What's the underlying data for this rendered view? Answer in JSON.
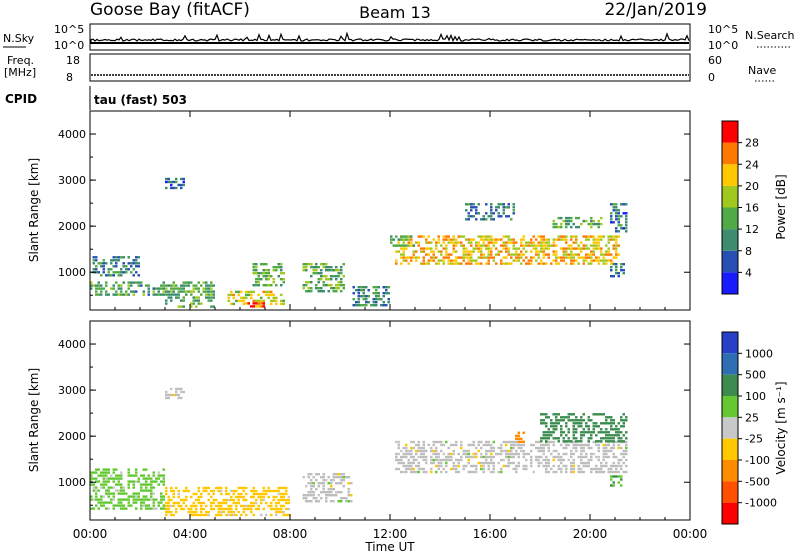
{
  "header": {
    "station": "Goose Bay (fitACF)",
    "beam": "Beam 13",
    "date": "22/Jan/2019"
  },
  "strips": {
    "nsky_label": "N.Sky",
    "nsearch_label": "N.Search",
    "nsky_ticks": [
      "10^5",
      "10^0"
    ],
    "nsearch_ticks": [
      "10^5",
      "10^0"
    ],
    "freq_label_1": "Freq.",
    "freq_label_2": "[MHz]",
    "freq_ticks": [
      "18",
      "8"
    ],
    "nave_label": "Nave",
    "nave_ticks": [
      "60",
      "0"
    ],
    "cpid_label": "CPID",
    "cpid_value": "tau (fast) 503"
  },
  "colors": {
    "power_scale": [
      "#1a1aff",
      "#2850b4",
      "#3c8c6e",
      "#50aa46",
      "#a0c81e",
      "#ffc800",
      "#ff7800",
      "#ff0000"
    ],
    "velocity_scale": [
      "#2840c8",
      "#2e6eb4",
      "#3c8c50",
      "#64c832",
      "#c8c8c8",
      "#ffc800",
      "#ff8c00",
      "#ff5000",
      "#ff0000"
    ],
    "ground_scatter": "#bebebe"
  },
  "chart_data": [
    {
      "type": "heatmap",
      "title": "",
      "xlabel": "Time UT",
      "ylabel": "Slant Range [km]",
      "colorbar_label": "Power [dB]",
      "x_ticks": [
        "00:00",
        "04:00",
        "08:00",
        "12:00",
        "16:00",
        "20:00",
        "00:00"
      ],
      "y_ticks": [
        "1000",
        "2000",
        "3000",
        "4000"
      ],
      "xlim_hours": [
        0,
        24
      ],
      "ylim_km": [
        180,
        4500
      ],
      "colorbar_ticks": [
        "4",
        "8",
        "12",
        "16",
        "20",
        "24",
        "28"
      ],
      "colorbar_range": [
        0,
        32
      ],
      "echo_regions": [
        {
          "t0": 0.1,
          "t1": 2.0,
          "r0": 900,
          "r1": 1350,
          "value": 9
        },
        {
          "t0": 0.0,
          "t1": 3.0,
          "r0": 500,
          "r1": 800,
          "value": 12
        },
        {
          "t0": 3.0,
          "t1": 5.0,
          "r0": 250,
          "r1": 800,
          "value": 13
        },
        {
          "t0": 5.5,
          "t1": 7.8,
          "r0": 300,
          "r1": 600,
          "value": 20
        },
        {
          "t0": 6.2,
          "t1": 7.0,
          "r0": 250,
          "r1": 350,
          "value": 28
        },
        {
          "t0": 6.5,
          "t1": 7.8,
          "r0": 700,
          "r1": 1200,
          "value": 14
        },
        {
          "t0": 8.5,
          "t1": 10.2,
          "r0": 600,
          "r1": 1200,
          "value": 14
        },
        {
          "t0": 10.5,
          "t1": 12.0,
          "r0": 300,
          "r1": 700,
          "value": 10
        },
        {
          "t0": 12.2,
          "t1": 21.2,
          "r0": 1200,
          "r1": 1800,
          "value": 22
        },
        {
          "t0": 12.0,
          "t1": 13.0,
          "r0": 1600,
          "r1": 1800,
          "value": 14
        },
        {
          "t0": 18.5,
          "t1": 20.5,
          "r0": 1950,
          "r1": 2200,
          "value": 14
        },
        {
          "t0": 15.0,
          "t1": 17.0,
          "r0": 2150,
          "r1": 2500,
          "value": 8
        },
        {
          "t0": 3.0,
          "t1": 3.8,
          "r0": 2850,
          "r1": 3050,
          "value": 8
        },
        {
          "t0": 20.8,
          "t1": 21.5,
          "r0": 1900,
          "r1": 2500,
          "value": 8
        },
        {
          "t0": 20.8,
          "t1": 21.4,
          "r0": 900,
          "r1": 1200,
          "value": 10
        }
      ]
    },
    {
      "type": "heatmap",
      "title": "",
      "xlabel": "Time UT",
      "ylabel": "Slant Range [km]",
      "colorbar_label": "Velocity [m s⁻¹]",
      "x_ticks": [
        "00:00",
        "04:00",
        "08:00",
        "12:00",
        "16:00",
        "20:00",
        "00:00"
      ],
      "y_ticks": [
        "1000",
        "2000",
        "3000",
        "4000"
      ],
      "xlim_hours": [
        0,
        24
      ],
      "ylim_km": [
        180,
        4500
      ],
      "colorbar_ticks": [
        "1000",
        "500",
        "100",
        "25",
        "-25",
        "-100",
        "-500",
        "-1000"
      ],
      "echo_regions": [
        {
          "t0": 0.0,
          "t1": 3.0,
          "r0": 450,
          "r1": 1300,
          "value": 60
        },
        {
          "t0": 3.0,
          "t1": 8.0,
          "r0": 250,
          "r1": 900,
          "value": -60
        },
        {
          "t0": 8.5,
          "t1": 10.5,
          "r0": 600,
          "r1": 1200,
          "value": 0
        },
        {
          "t0": 12.2,
          "t1": 21.5,
          "r0": 1200,
          "r1": 1900,
          "value": 0
        },
        {
          "t0": 17.0,
          "t1": 17.4,
          "r0": 1900,
          "r1": 2100,
          "value": -200
        },
        {
          "t0": 18.0,
          "t1": 21.5,
          "r0": 1900,
          "r1": 2500,
          "value": 300
        },
        {
          "t0": 3.0,
          "t1": 3.8,
          "r0": 2800,
          "r1": 3050,
          "value": 0
        },
        {
          "t0": 20.8,
          "t1": 21.3,
          "r0": 950,
          "r1": 1150,
          "value": 80
        }
      ]
    }
  ]
}
